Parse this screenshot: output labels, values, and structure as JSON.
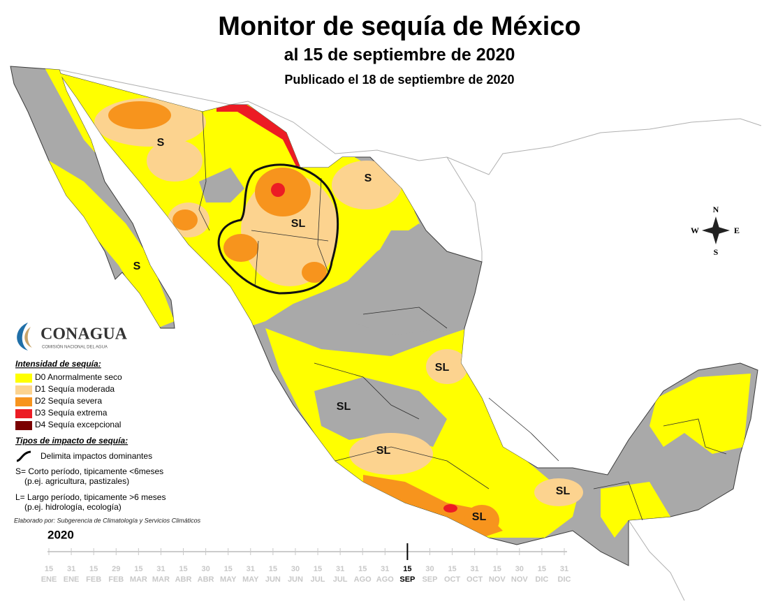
{
  "title": "Monitor de sequía de México",
  "subtitle": "al 15 de septiembre de 2020",
  "published": "Publicado el 18 de septiembre de 2020",
  "map_labels": [
    "S",
    "S",
    "S",
    "SL",
    "SL",
    "SL",
    "SL",
    "SL",
    "SL"
  ],
  "compass": {
    "north": "N",
    "south": "S",
    "east": "E",
    "west": "W"
  },
  "logo": {
    "name": "CONAGUA",
    "subtitle": "COMISIÓN NACIONAL DEL AGUA"
  },
  "legend": {
    "title": "Intensidad de sequía:",
    "items": [
      {
        "label": "D0 Anormalmente seco",
        "color": "#ffff00"
      },
      {
        "label": "D1 Sequía moderada",
        "color": "#fcd38f"
      },
      {
        "label": "D2 Sequía severa",
        "color": "#f7941d"
      },
      {
        "label": "D3 Sequía extrema",
        "color": "#ec1c24"
      },
      {
        "label": "D4 Sequía excepcional",
        "color": "#7a0000"
      }
    ]
  },
  "impact": {
    "title": "Tipos de impacto de sequía:",
    "items": [
      "Delimita impactos dominantes",
      "S= Corto período, tipicamente <6meses",
      "(p.ej. agricultura, pastizales)",
      "L= Largo período, tipicamente >6 meses",
      "(p.ej. hidrología, ecología)"
    ]
  },
  "credit": "Elaborado por: Subgerencia de Climatología y Servicios Climáticos",
  "year": "2020",
  "timeline": [
    {
      "day": 15,
      "month": "ENE"
    },
    {
      "day": 31,
      "month": "ENE"
    },
    {
      "day": 15,
      "month": "FEB"
    },
    {
      "day": 29,
      "month": "FEB"
    },
    {
      "day": 15,
      "month": "MAR"
    },
    {
      "day": 31,
      "month": "MAR"
    },
    {
      "day": 15,
      "month": "ABR"
    },
    {
      "day": 30,
      "month": "ABR"
    },
    {
      "day": 15,
      "month": "MAY"
    },
    {
      "day": 31,
      "month": "MAY"
    },
    {
      "day": 15,
      "month": "JUN"
    },
    {
      "day": 30,
      "month": "JUN"
    },
    {
      "day": 15,
      "month": "JUL"
    },
    {
      "day": 31,
      "month": "JUL"
    },
    {
      "day": 15,
      "month": "AGO"
    },
    {
      "day": 31,
      "month": "AGO"
    },
    {
      "day": 15,
      "month": "SEP",
      "current": true
    },
    {
      "day": 30,
      "month": "SEP"
    },
    {
      "day": 15,
      "month": "OCT"
    },
    {
      "day": 31,
      "month": "OCT"
    },
    {
      "day": 15,
      "month": "NOV"
    },
    {
      "day": 30,
      "month": "NOV"
    },
    {
      "day": 15,
      "month": "DIC"
    },
    {
      "day": 31,
      "month": "DIC"
    }
  ]
}
